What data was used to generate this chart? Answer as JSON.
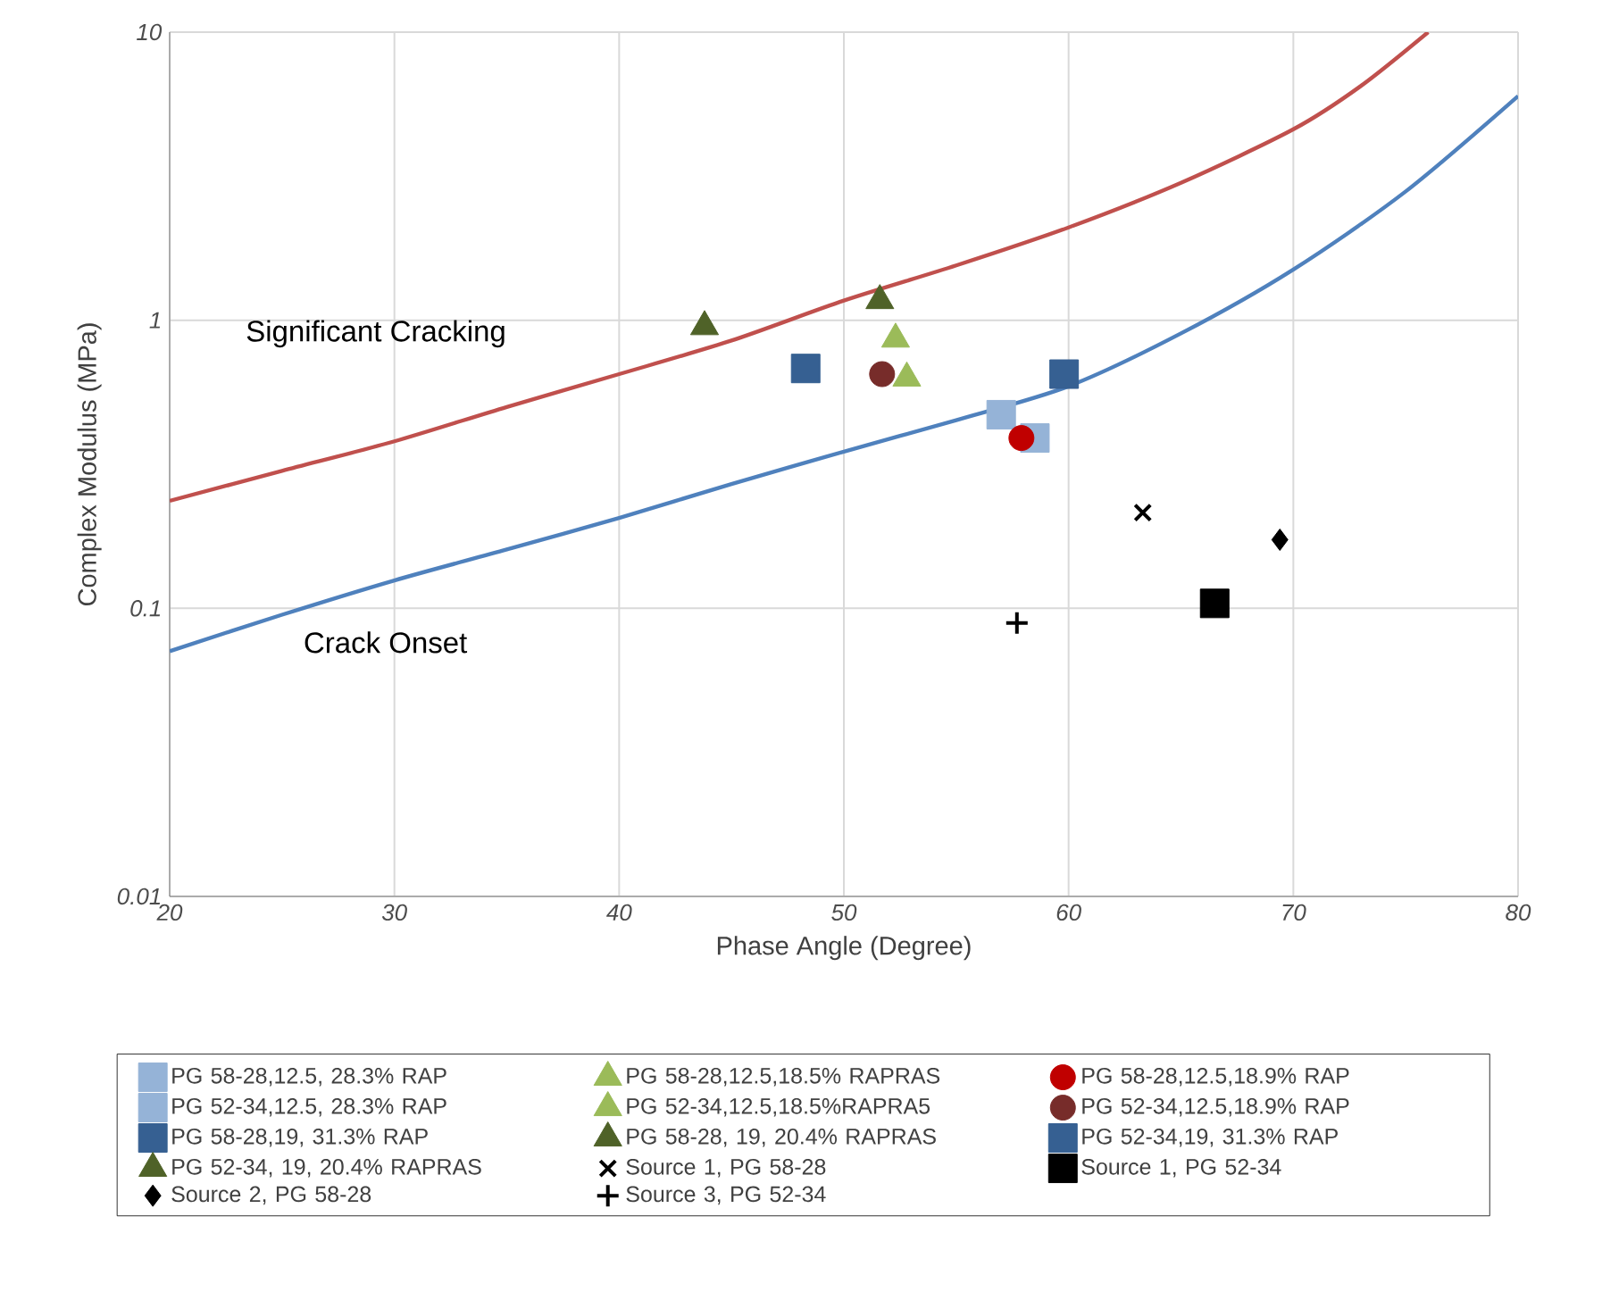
{
  "chart_data": {
    "type": "scatter",
    "xlabel": "Phase Angle (Degree)",
    "ylabel": "Complex Modulus (MPa)",
    "log": "y",
    "xlim": [
      20,
      80
    ],
    "xticks": [
      20,
      30,
      40,
      50,
      60,
      70,
      80
    ],
    "ylim": [
      0.01,
      10
    ],
    "yticks": [
      0.01,
      0.1,
      1,
      10
    ],
    "grid": true,
    "legend": "bottom",
    "series": [
      {
        "type": "line",
        "color": "#c0504d",
        "marker": "none",
        "x": [
          20,
          25,
          30,
          35,
          40,
          45,
          50,
          55,
          60,
          65,
          70,
          73,
          76
        ],
        "values": [
          0.236,
          0.3,
          0.38,
          0.5,
          0.65,
          0.85,
          1.17,
          1.55,
          2.1,
          3.0,
          4.6,
          6.5,
          10
        ]
      },
      {
        "type": "line",
        "color": "#4f81bd",
        "marker": "none",
        "x": [
          20,
          25,
          30,
          35,
          40,
          45,
          50,
          55,
          60,
          65,
          70,
          75,
          80
        ],
        "values": [
          0.071,
          0.095,
          0.125,
          0.16,
          0.206,
          0.27,
          0.35,
          0.45,
          0.59,
          0.9,
          1.5,
          2.8,
          6.0
        ]
      },
      {
        "name": "PG 58-28,12.5, 28.3% RAP",
        "color": "#95b3d7",
        "marker": "square",
        "x": [
          57.0
        ],
        "values": [
          0.47
        ]
      },
      {
        "name": "PG 58-28,12.5,18.5% RAPRAS",
        "color": "#9bbb59",
        "marker": "triangle",
        "x": [
          52.3
        ],
        "values": [
          0.86
        ]
      },
      {
        "name": "PG 58-28,12.5,18.9% RAP",
        "color": "#c00000",
        "marker": "circle",
        "x": [
          57.9
        ],
        "values": [
          0.39
        ]
      },
      {
        "name": "PG 52-34,12.5, 28.3% RAP",
        "color": "#95b3d7",
        "marker": "square",
        "x": [
          58.5
        ],
        "values": [
          0.39
        ]
      },
      {
        "name": "PG 52-34,12.5,18.5%RAPRA5",
        "color": "#9bbb59",
        "marker": "triangle",
        "x": [
          52.8
        ],
        "values": [
          0.63
        ]
      },
      {
        "name": "PG 52-34,12.5,18.9% RAP",
        "color": "#772c2a",
        "marker": "circle",
        "x": [
          51.7
        ],
        "values": [
          0.65
        ]
      },
      {
        "name": "PG 58-28,19, 31.3% RAP",
        "color": "#366092",
        "marker": "square",
        "x": [
          59.8
        ],
        "values": [
          0.65
        ]
      },
      {
        "name": "PG 58-28, 19, 20.4% RAPRAS",
        "color": "#4f6228",
        "marker": "triangle",
        "x": [
          51.6
        ],
        "values": [
          1.17
        ]
      },
      {
        "name": "PG 52-34,19, 31.3% RAP",
        "color": "#366092",
        "marker": "square",
        "x": [
          48.3
        ],
        "values": [
          0.68
        ]
      },
      {
        "name": "PG 52-34, 19, 20.4% RAPRAS",
        "color": "#4f6228",
        "marker": "triangle",
        "x": [
          43.8
        ],
        "values": [
          0.95
        ]
      },
      {
        "name": "Source 1, PG 58-28",
        "color": "#000000",
        "marker": "cross",
        "x": [
          63.3
        ],
        "values": [
          0.215
        ]
      },
      {
        "name": "Source 1, PG 52-34",
        "color": "#000000",
        "marker": "square",
        "x": [
          66.5
        ],
        "values": [
          0.104
        ]
      },
      {
        "name": "Source 2, PG 58-28",
        "color": "#000000",
        "marker": "diamond",
        "x": [
          69.4
        ],
        "values": [
          0.173
        ]
      },
      {
        "name": "Source 3, PG 52-34",
        "color": "#000000",
        "marker": "plus",
        "x": [
          57.7
        ],
        "values": [
          0.089
        ]
      }
    ],
    "annotations": [
      "Significant Cracking",
      "Crack Onset"
    ]
  }
}
